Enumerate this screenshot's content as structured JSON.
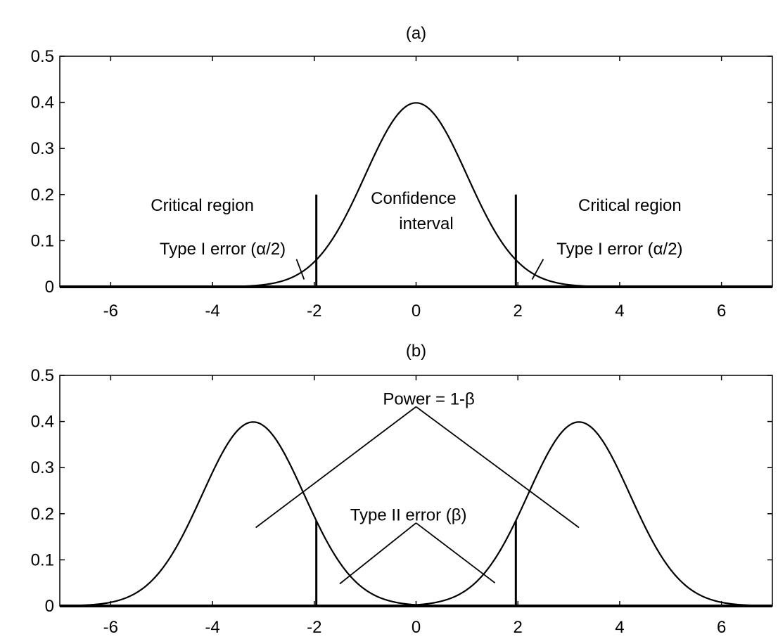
{
  "chart_data": [
    {
      "type": "line",
      "title": "(a)",
      "xlim": [
        -7,
        7
      ],
      "ylim": [
        0,
        0.5
      ],
      "xticks": [
        -6,
        -4,
        -2,
        0,
        2,
        4,
        6
      ],
      "yticks": [
        0,
        0.1,
        0.2,
        0.3,
        0.4,
        0.5
      ],
      "xtick_labels": [
        "-6",
        "-4",
        "-2",
        "0",
        "2",
        "4",
        "6"
      ],
      "ytick_labels": [
        "0",
        "0.1",
        "0.2",
        "0.3",
        "0.4",
        "0.5"
      ],
      "grid": false,
      "series": [
        {
          "curve": "normal",
          "mean": 0,
          "sd": 1
        }
      ],
      "critical_lines": [
        {
          "x": -1.96,
          "y_top": 0.2
        },
        {
          "x": 1.96,
          "y_top": 0.2
        }
      ],
      "annotations": [
        {
          "text": "Critical region",
          "x": -4.2,
          "y": 0.165
        },
        {
          "text": "Critical region",
          "x": 4.2,
          "y": 0.165
        },
        {
          "text": "Confidence",
          "x": -0.05,
          "y": 0.18
        },
        {
          "text": "interval",
          "x": 0.2,
          "y": 0.125
        },
        {
          "text": "Type I error (α/2)",
          "x": -3.8,
          "y": 0.07
        },
        {
          "text": "Type I error (α/2)",
          "x": 4.0,
          "y": 0.07
        }
      ],
      "pointers": [
        {
          "from": [
            -2.35,
            0.06
          ],
          "to": [
            -2.2,
            0.016
          ]
        },
        {
          "from": [
            2.5,
            0.06
          ],
          "to": [
            2.28,
            0.016
          ]
        }
      ]
    },
    {
      "type": "line",
      "title": "(b)",
      "xlim": [
        -7,
        7
      ],
      "ylim": [
        0,
        0.5
      ],
      "xticks": [
        -6,
        -4,
        -2,
        0,
        2,
        4,
        6
      ],
      "yticks": [
        0,
        0.1,
        0.2,
        0.3,
        0.4,
        0.5
      ],
      "xtick_labels": [
        "-6",
        "-4",
        "-2",
        "0",
        "2",
        "4",
        "6"
      ],
      "ytick_labels": [
        "0",
        "0.1",
        "0.2",
        "0.3",
        "0.4",
        "0.5"
      ],
      "grid": false,
      "series": [
        {
          "curve": "normal",
          "mean": -3.2,
          "sd": 1
        },
        {
          "curve": "normal",
          "mean": 3.2,
          "sd": 1
        }
      ],
      "critical_lines": [
        {
          "x": -1.96,
          "y_top": 0.185
        },
        {
          "x": 1.96,
          "y_top": 0.185
        }
      ],
      "annotations": [
        {
          "text": "Power = 1-β",
          "x": 0.25,
          "y": 0.437
        },
        {
          "text": "Type II error (β)",
          "x": -0.15,
          "y": 0.185
        }
      ],
      "pointers": [
        {
          "from": [
            0,
            0.432
          ],
          "to": [
            -3.15,
            0.17
          ]
        },
        {
          "from": [
            0,
            0.432
          ],
          "to": [
            3.2,
            0.17
          ]
        },
        {
          "from": [
            0,
            0.18
          ],
          "to": [
            -1.5,
            0.048
          ]
        },
        {
          "from": [
            0,
            0.18
          ],
          "to": [
            1.55,
            0.05
          ]
        }
      ]
    }
  ]
}
